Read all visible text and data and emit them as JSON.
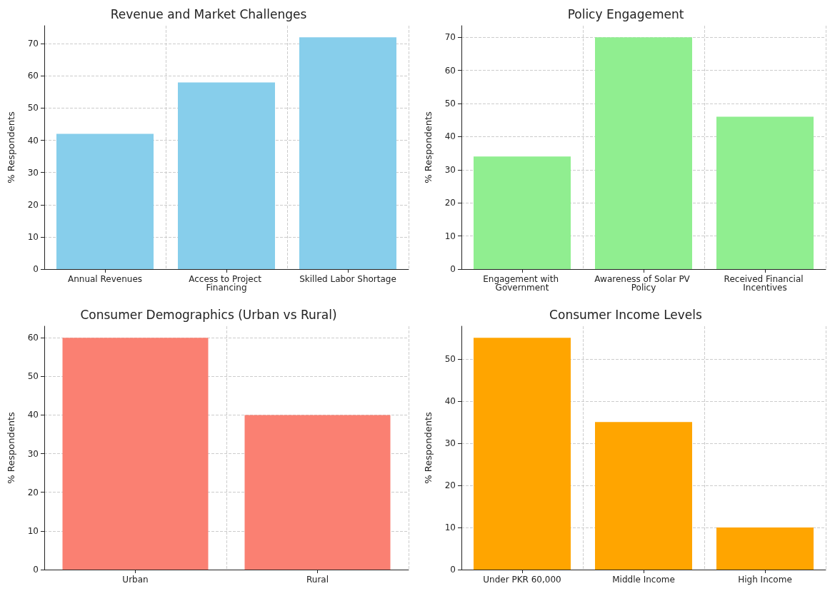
{
  "chart_data": [
    {
      "type": "bar",
      "title": "Revenue and Market Challenges",
      "ylabel": "% Respondents",
      "categories": [
        "Annual Revenues",
        "Access to Project Financing",
        "Skilled Labor Shortage"
      ],
      "values": [
        42,
        58,
        72
      ],
      "color": "#87ceeb",
      "ylim": [
        0,
        75.6
      ],
      "yticks": [
        0,
        10,
        20,
        30,
        40,
        50,
        60,
        70
      ],
      "grid": true
    },
    {
      "type": "bar",
      "title": "Policy Engagement",
      "ylabel": "% Respondents",
      "categories": [
        "Engagement with Government",
        "Awareness of Solar PV Policy",
        "Received Financial Incentives"
      ],
      "values": [
        34,
        70,
        46
      ],
      "color": "#90ee90",
      "ylim": [
        0,
        73.5
      ],
      "yticks": [
        0,
        10,
        20,
        30,
        40,
        50,
        60,
        70
      ],
      "grid": true
    },
    {
      "type": "bar",
      "title": "Consumer Demographics (Urban vs Rural)",
      "ylabel": "% Respondents",
      "categories": [
        "Urban",
        "Rural"
      ],
      "values": [
        60,
        40
      ],
      "color": "#fa8072",
      "ylim": [
        0,
        63
      ],
      "yticks": [
        0,
        10,
        20,
        30,
        40,
        50,
        60
      ],
      "grid": true
    },
    {
      "type": "bar",
      "title": "Consumer Income Levels",
      "ylabel": "% Respondents",
      "categories": [
        "Under PKR 60,000",
        "Middle Income",
        "High Income"
      ],
      "values": [
        55,
        35,
        10
      ],
      "color": "#ffa500",
      "ylim": [
        0,
        57.75
      ],
      "yticks": [
        0,
        10,
        20,
        30,
        40,
        50
      ],
      "grid": true
    }
  ]
}
